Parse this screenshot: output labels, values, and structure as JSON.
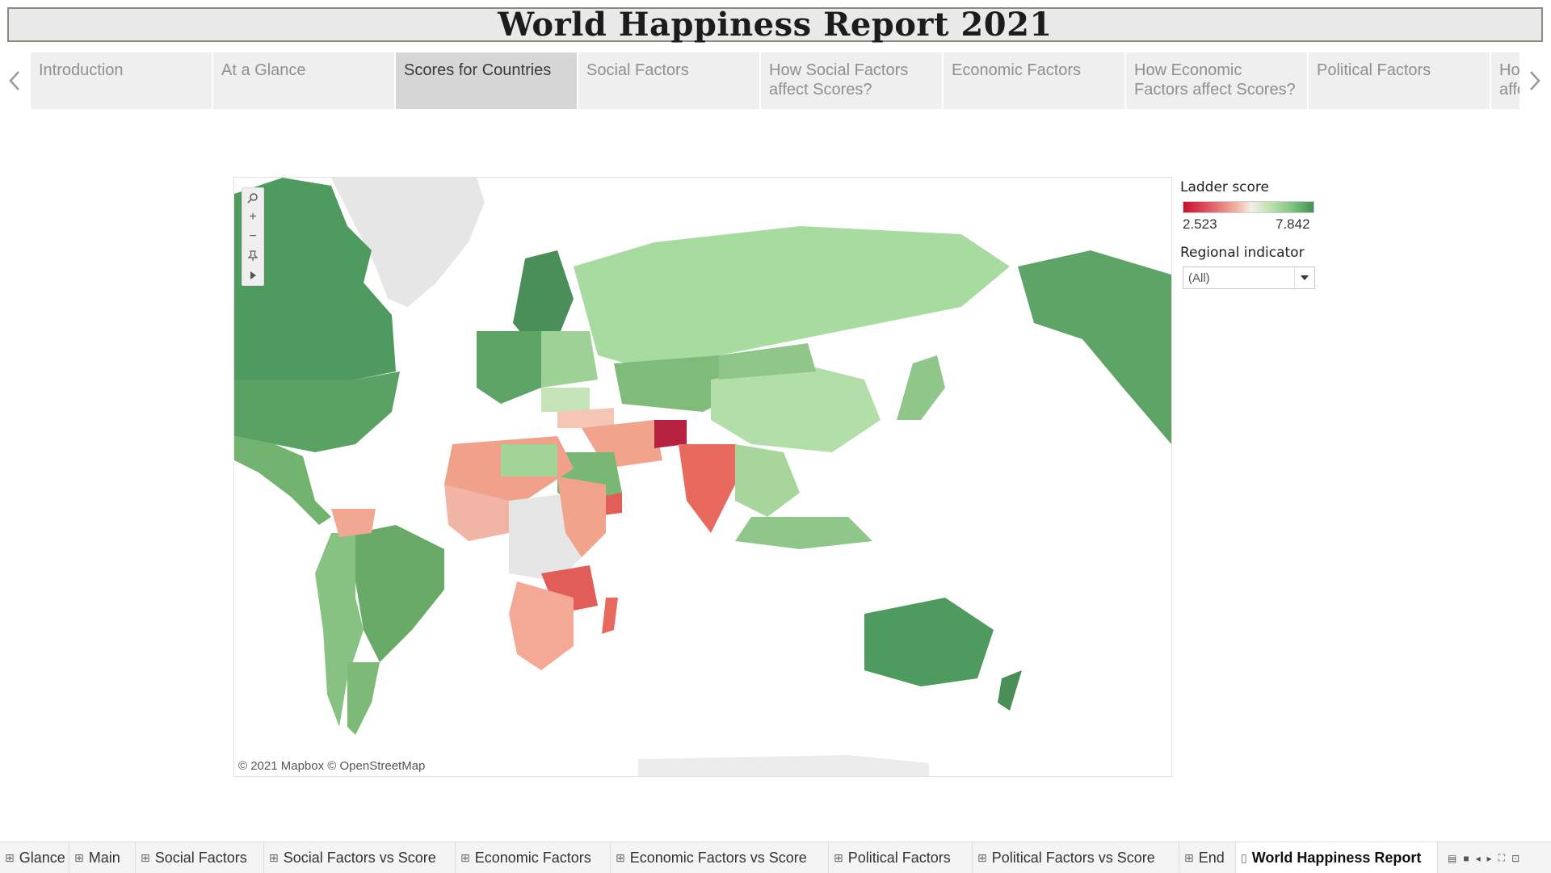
{
  "title": "World Happiness Report 2021",
  "story": {
    "prev_icon": "chevron-left-icon",
    "next_icon": "chevron-right-icon",
    "tabs": [
      {
        "label": "Introduction"
      },
      {
        "label": "At a Glance"
      },
      {
        "label": "Scores for Countries",
        "active": true
      },
      {
        "label": "Social Factors"
      },
      {
        "label": "How Social Factors affect Scores?"
      },
      {
        "label": "Economic Factors"
      },
      {
        "label": "How Economic Factors affect Scores?"
      },
      {
        "label": "Political Factors"
      },
      {
        "label": "How Political Factors affect Scores?"
      }
    ]
  },
  "map": {
    "attribution": "© 2021 Mapbox © OpenStreetMap",
    "tools": [
      "search-icon",
      "zoom-in-icon",
      "zoom-out-icon",
      "pin-icon",
      "expand-arrow-icon"
    ],
    "color_scale": {
      "low": "#c8102e",
      "mid": "#f2efe6",
      "high": "#3f8f57"
    }
  },
  "legend": {
    "title": "Ladder score",
    "min": "2.523",
    "max": "7.842"
  },
  "filter": {
    "title": "Regional indicator",
    "value": "(All)"
  },
  "sheets": {
    "tabs": [
      {
        "label": "Glance"
      },
      {
        "label": "Main"
      },
      {
        "label": "Social Factors"
      },
      {
        "label": "Social Factors vs Score"
      },
      {
        "label": "Economic Factors"
      },
      {
        "label": "Economic Factors vs Score"
      },
      {
        "label": "Political Factors"
      },
      {
        "label": "Political Factors vs Score"
      },
      {
        "label": "End"
      },
      {
        "label": "World Happiness Report",
        "active": true
      }
    ]
  }
}
